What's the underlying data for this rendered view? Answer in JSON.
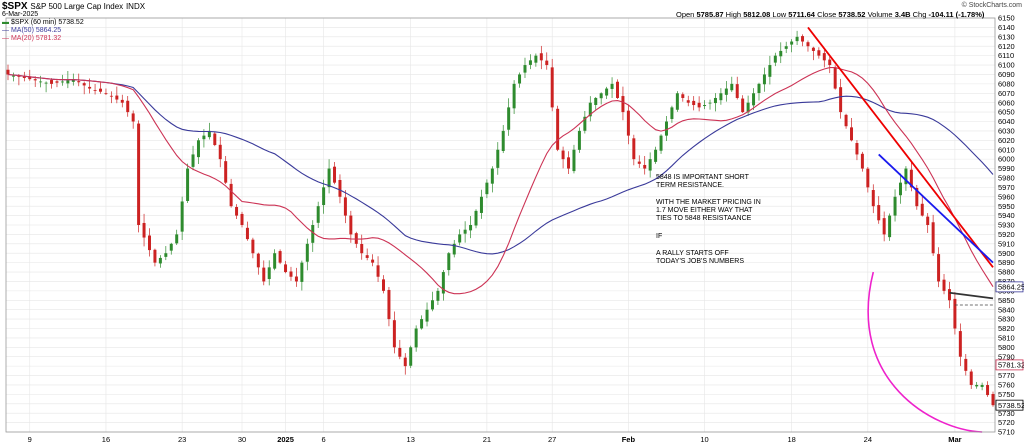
{
  "header": {
    "symbol": "$SPX",
    "name": "S&P 500 Large Cap Index",
    "exchange": "INDX",
    "date": "6-Mar-2025",
    "credit": "© StockCharts.com"
  },
  "legend": {
    "price": "$SPX (60 min) 5738.52",
    "ma50": "MA(50) 5864.25",
    "ma20": "MA(20) 5781.32"
  },
  "ohlc": {
    "open_label": "Open",
    "open": "5785.87",
    "high_label": "High",
    "high": "5812.08",
    "low_label": "Low",
    "low": "5711.64",
    "close_label": "Close",
    "close": "5738.52",
    "volume_label": "Volume",
    "volume": "3.4B",
    "chg_label": "Chg",
    "chg": "-104.11 (-1.78%)"
  },
  "annotations": {
    "block1": [
      "5848 IS IMPORTANT SHORT",
      "TERM RESISTANCE."
    ],
    "block2": [
      "WITH THE MARKET PRICING IN",
      "1.7 MOVE EITHER WAY THAT",
      "TIES TO 5848 RESISTAANCE"
    ],
    "block3": [
      "IF"
    ],
    "block4": [
      "A RALLY STARTS OFF",
      "TODAY'S JOB'S NUMBERS"
    ]
  },
  "price_tags": {
    "ma50": "5864.25",
    "ma20": "5781.32",
    "close": "5738.52"
  },
  "colors": {
    "up_candle": "#2e8b2e",
    "down_candle": "#cc2222",
    "ma50": "#3a3a9a",
    "ma20": "#cc3355",
    "red_trendline": "#ee0000",
    "blue_trendline": "#1a1aee",
    "dark_trendline": "#333333",
    "magenta_curve": "#ee22cc",
    "grid": "#e6e6e6"
  },
  "chart_data": {
    "type": "line",
    "title": "$SPX S&P 500 Large Cap Index INDX (60 min)",
    "ylim": [
      5710,
      6150
    ],
    "ytick_step": 10,
    "y_scale": "linear",
    "grid": true,
    "x_tick_labels": [
      "9",
      "16",
      "23",
      "30",
      "2025",
      "6",
      "13",
      "21",
      "27",
      "Feb",
      "10",
      "18",
      "24",
      "Mar"
    ],
    "x_tick_positions": [
      4,
      18,
      32,
      43,
      51,
      58,
      74,
      88,
      100,
      114,
      128,
      144,
      158,
      174
    ],
    "bar_count": 182,
    "close_anchors": [
      [
        0,
        6090
      ],
      [
        4,
        6085
      ],
      [
        8,
        6080
      ],
      [
        12,
        6085
      ],
      [
        15,
        6075
      ],
      [
        18,
        6070
      ],
      [
        21,
        6060
      ],
      [
        23,
        6040
      ],
      [
        24,
        5930
      ],
      [
        27,
        5890
      ],
      [
        29,
        5900
      ],
      [
        31,
        5920
      ],
      [
        33,
        5990
      ],
      [
        35,
        6020
      ],
      [
        37,
        6030
      ],
      [
        39,
        6000
      ],
      [
        41,
        5950
      ],
      [
        43,
        5930
      ],
      [
        45,
        5900
      ],
      [
        47,
        5870
      ],
      [
        49,
        5900
      ],
      [
        51,
        5880
      ],
      [
        53,
        5870
      ],
      [
        55,
        5910
      ],
      [
        57,
        5950
      ],
      [
        59,
        5990
      ],
      [
        61,
        5960
      ],
      [
        63,
        5920
      ],
      [
        65,
        5900
      ],
      [
        67,
        5890
      ],
      [
        69,
        5860
      ],
      [
        71,
        5800
      ],
      [
        73,
        5780
      ],
      [
        75,
        5820
      ],
      [
        77,
        5840
      ],
      [
        79,
        5860
      ],
      [
        81,
        5900
      ],
      [
        83,
        5920
      ],
      [
        85,
        5930
      ],
      [
        87,
        5960
      ],
      [
        89,
        5990
      ],
      [
        91,
        6030
      ],
      [
        93,
        6080
      ],
      [
        95,
        6100
      ],
      [
        97,
        6110
      ],
      [
        99,
        6100
      ],
      [
        101,
        6010
      ],
      [
        103,
        5990
      ],
      [
        105,
        6030
      ],
      [
        107,
        6060
      ],
      [
        109,
        6070
      ],
      [
        111,
        6080
      ],
      [
        113,
        6050
      ],
      [
        115,
        6000
      ],
      [
        117,
        5990
      ],
      [
        119,
        6010
      ],
      [
        121,
        6040
      ],
      [
        123,
        6070
      ],
      [
        125,
        6060
      ],
      [
        127,
        6055
      ],
      [
        129,
        6060
      ],
      [
        131,
        6070
      ],
      [
        133,
        6080
      ],
      [
        135,
        6050
      ],
      [
        137,
        6070
      ],
      [
        139,
        6090
      ],
      [
        141,
        6110
      ],
      [
        143,
        6120
      ],
      [
        145,
        6130
      ],
      [
        147,
        6120
      ],
      [
        149,
        6110
      ],
      [
        151,
        6100
      ],
      [
        153,
        6050
      ],
      [
        155,
        6020
      ],
      [
        157,
        5990
      ],
      [
        159,
        5950
      ],
      [
        161,
        5920
      ],
      [
        163,
        5960
      ],
      [
        165,
        5990
      ],
      [
        167,
        5950
      ],
      [
        169,
        5930
      ],
      [
        171,
        5870
      ],
      [
        173,
        5850
      ],
      [
        175,
        5790
      ],
      [
        177,
        5760
      ],
      [
        179,
        5760
      ],
      [
        181,
        5738.52
      ]
    ],
    "last_values": {
      "close": 5738.52,
      "ma50": 5864.25,
      "ma20": 5781.32
    },
    "series": [
      {
        "name": "$SPX (60 min)",
        "kind": "candlestick"
      },
      {
        "name": "MA(50)",
        "kind": "line",
        "period": 50
      },
      {
        "name": "MA(20)",
        "kind": "line",
        "period": 20
      }
    ],
    "trendlines": [
      {
        "color": "red",
        "from": [
          147,
          6140
        ],
        "to": [
          181,
          5885
        ]
      },
      {
        "color": "blue",
        "from": [
          160,
          6005
        ],
        "to": [
          181,
          5890
        ]
      },
      {
        "color": "dark",
        "from": [
          173,
          5858
        ],
        "to": [
          181,
          5852
        ]
      },
      {
        "color": "dashed",
        "from": [
          174,
          5845
        ],
        "to": [
          181,
          5845
        ]
      }
    ],
    "magenta_curve": {
      "points": [
        [
          159,
          5880
        ],
        [
          154,
          5765
        ],
        [
          170,
          5712
        ],
        [
          179,
          5710
        ]
      ]
    }
  }
}
